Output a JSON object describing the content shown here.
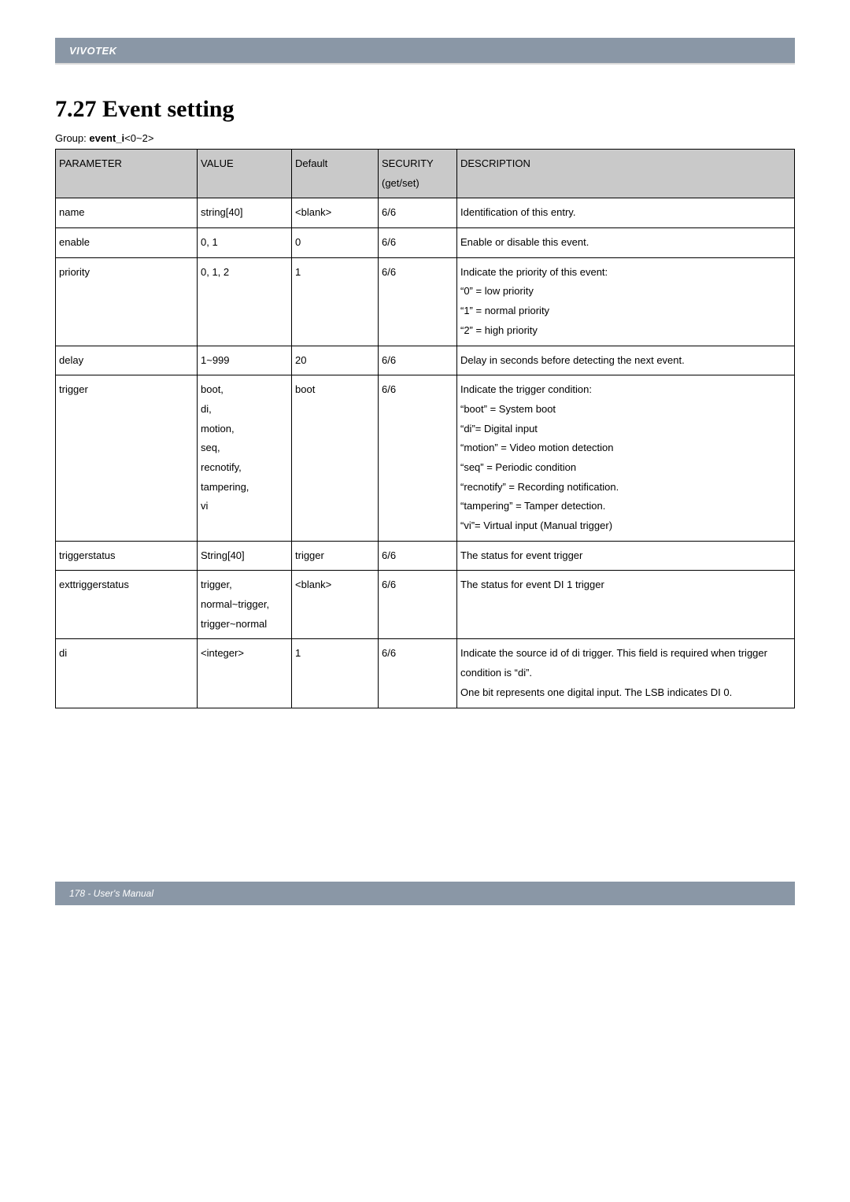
{
  "brand": "VIVOTEK",
  "section_title": "7.27 Event setting",
  "group_prefix": "Group: ",
  "group_name": "event_i",
  "group_suffix": "<0~2>",
  "columns": [
    "PARAMETER",
    "VALUE",
    "Default",
    "SECURITY (get/set)",
    "DESCRIPTION"
  ],
  "rows": [
    {
      "param": "name",
      "value": "string[40]",
      "default": "<blank>",
      "security": "6/6",
      "desc": "Identification of this entry."
    },
    {
      "param": "enable",
      "value": "0, 1",
      "default": "0",
      "security": "6/6",
      "desc": "Enable or disable this event."
    },
    {
      "param": "priority",
      "value": "0, 1, 2",
      "default": "1",
      "security": "6/6",
      "desc": "Indicate the priority of this event:\n“0” = low priority\n“1” = normal priority\n“2” = high priority"
    },
    {
      "param": "delay",
      "value": "1~999",
      "default": "20",
      "security": "6/6",
      "desc": "Delay in seconds before detecting the next event."
    },
    {
      "param": "trigger",
      "value": "boot,\ndi,\nmotion,\nseq,\nrecnotify,\ntampering,\nvi",
      "default": "boot",
      "security": "6/6",
      "desc": "Indicate the trigger condition:\n“boot” = System boot\n“di”= Digital input\n“motion” = Video motion detection\n“seq” = Periodic condition\n“recnotify” = Recording notification.\n“tampering” = Tamper detection.\n “vi”= Virtual input (Manual trigger)"
    },
    {
      "param": "triggerstatus",
      "value": "String[40]",
      "default": "trigger",
      "security": "6/6",
      "desc": "The status for event trigger"
    },
    {
      "param": "exttriggerstatus",
      "value": "trigger,\nnormal~trigger,\ntrigger~normal",
      "default": "<blank>",
      "security": "6/6",
      "desc": "The status for event DI 1 trigger"
    },
    {
      "param": "di",
      "value": "<integer>",
      "default": "1",
      "security": "6/6",
      "desc": "Indicate the source id of di trigger. This field is required when trigger condition is “di”.\nOne bit represents one digital input. The LSB indicates DI 0."
    }
  ],
  "footer": "178 - User's Manual",
  "colors": {
    "header_bg": "#8a97a6",
    "th_bg": "#c9c9c9",
    "border": "#000000",
    "text": "#000000",
    "white": "#ffffff",
    "divider": "#d9d9d9"
  }
}
